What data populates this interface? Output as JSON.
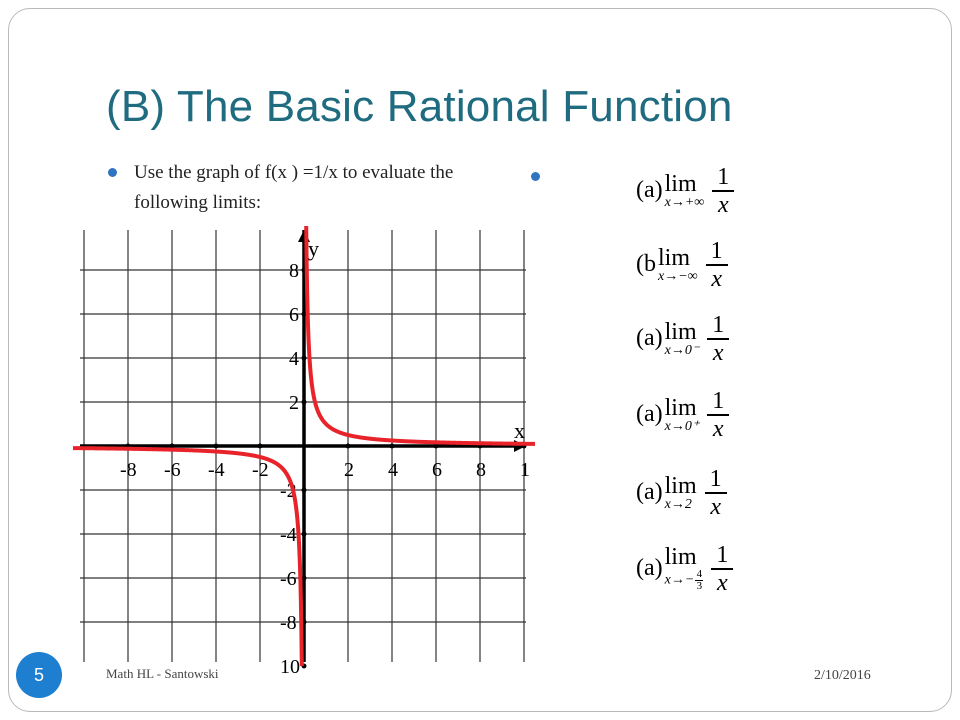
{
  "slide": {
    "title": "(B) The Basic Rational Function",
    "bullet_text": "Use the graph of f(x ) =1/x to evaluate the following limits:",
    "page_number": "5",
    "footer_left": "Math HL - Santowski",
    "footer_right": "2/10/2016",
    "accent_color": "#1f6b80",
    "bullet_color": "#2f74c0"
  },
  "limits": [
    {
      "label": "(a)",
      "word": "lim",
      "sub_var": "x",
      "sub_target": "+∞",
      "numerator": "1",
      "denominator": "x"
    },
    {
      "label": "(b",
      "word": "lim",
      "sub_var": "x",
      "sub_target": "−∞",
      "numerator": "1",
      "denominator": "x"
    },
    {
      "label": "(a)",
      "word": "lim",
      "sub_var": "x",
      "sub_target": "0⁻",
      "numerator": "1",
      "denominator": "x"
    },
    {
      "label": "(a)",
      "word": "lim",
      "sub_var": "x",
      "sub_target": "0⁺",
      "numerator": "1",
      "denominator": "x"
    },
    {
      "label": "(a)",
      "word": "lim",
      "sub_var": "x",
      "sub_target": "2",
      "numerator": "1",
      "denominator": "x"
    },
    {
      "label": "(a)",
      "word": "lim",
      "sub_var": "x",
      "sub_target": "−",
      "sub_frac_num": "4",
      "sub_frac_den": "3",
      "numerator": "1",
      "denominator": "x"
    }
  ],
  "chart_data": {
    "type": "line",
    "function": "f(x) = 1/x",
    "xlabel": "x",
    "ylabel": "y",
    "xlim": [
      -10,
      10
    ],
    "ylim": [
      -10,
      10
    ],
    "grid": true,
    "x_tick_labels": [
      "-8",
      "-6",
      "-4",
      "-2",
      "2",
      "4",
      "6",
      "8",
      "1"
    ],
    "y_tick_labels": [
      "8",
      "6",
      "4",
      "2",
      "-2",
      "-4",
      "-6",
      "-8",
      "10"
    ],
    "series": [
      {
        "color": "#e8232a",
        "x": [
          -10,
          -8,
          -6,
          -4,
          -2,
          -1,
          -0.5,
          -0.25,
          -0.125,
          -0.1
        ],
        "y": [
          -0.1,
          -0.125,
          -0.167,
          -0.25,
          -0.5,
          -1,
          -2,
          -4,
          -8,
          -10
        ]
      },
      {
        "color": "#e8232a",
        "x": [
          0.1,
          0.125,
          0.25,
          0.5,
          1,
          2,
          4,
          6,
          8,
          10
        ],
        "y": [
          10,
          8,
          4,
          2,
          1,
          0.5,
          0.25,
          0.167,
          0.125,
          0.1
        ]
      }
    ]
  }
}
